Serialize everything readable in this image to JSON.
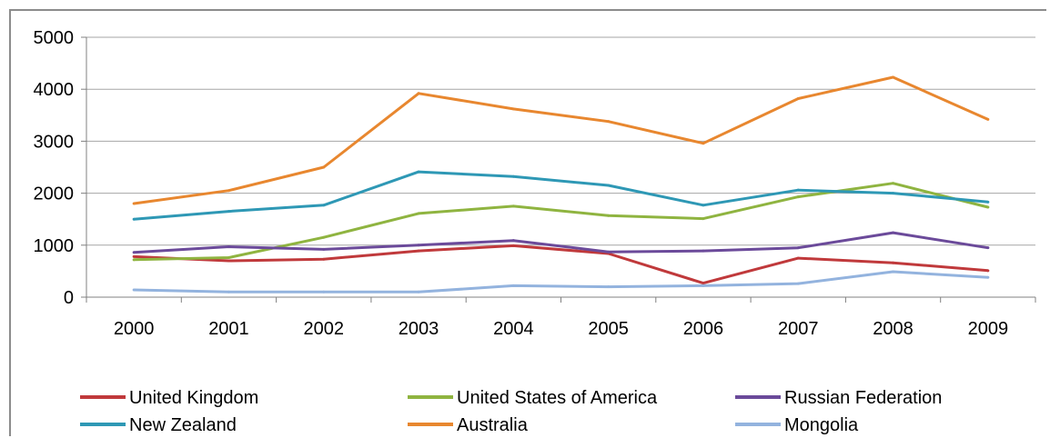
{
  "chart_data": {
    "type": "line",
    "title": "",
    "xlabel": "",
    "ylabel": "",
    "ylim": [
      0,
      5000
    ],
    "yticks": [
      0,
      1000,
      2000,
      3000,
      4000,
      5000
    ],
    "grid": true,
    "legend_position": "bottom",
    "categories": [
      "2000",
      "2001",
      "2002",
      "2003",
      "2004",
      "2005",
      "2006",
      "2007",
      "2008",
      "2009"
    ],
    "series": [
      {
        "name": "United Kingdom",
        "color": "#c0393b",
        "values": [
          780,
          700,
          730,
          890,
          990,
          840,
          270,
          750,
          660,
          510
        ]
      },
      {
        "name": "United States of America",
        "color": "#8fb440",
        "values": [
          720,
          760,
          1150,
          1610,
          1750,
          1570,
          1510,
          1930,
          2190,
          1730
        ]
      },
      {
        "name": "Russian Federation",
        "color": "#6b4a9a",
        "values": [
          860,
          970,
          920,
          1000,
          1090,
          870,
          890,
          950,
          1240,
          950
        ]
      },
      {
        "name": "New Zealand",
        "color": "#2e98b5",
        "values": [
          1500,
          1650,
          1770,
          2410,
          2320,
          2150,
          1770,
          2060,
          2000,
          1830
        ]
      },
      {
        "name": "Australia",
        "color": "#e8872f",
        "values": [
          1800,
          2050,
          2500,
          3920,
          3620,
          3380,
          2960,
          3820,
          4230,
          3420
        ]
      },
      {
        "name": "Mongolia",
        "color": "#93b3de",
        "values": [
          140,
          100,
          100,
          100,
          220,
          200,
          220,
          260,
          490,
          380
        ]
      }
    ]
  }
}
